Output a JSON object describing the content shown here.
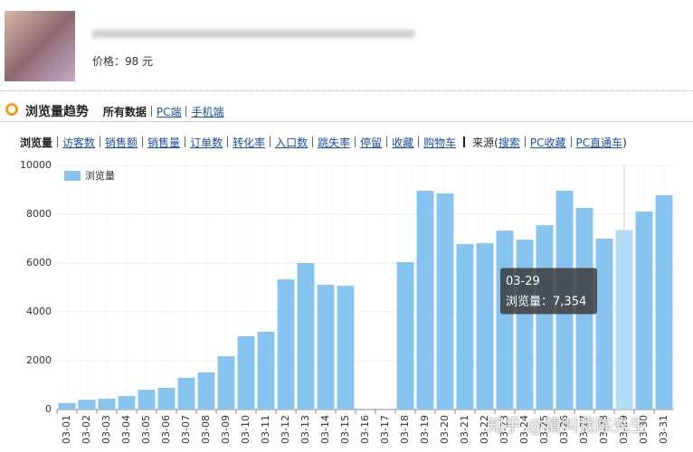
{
  "product": {
    "price": "价格：98 元"
  },
  "section": {
    "title": "浏览量趋势",
    "tabs": [
      "所有数据",
      "PC端",
      "手机端"
    ]
  },
  "metrics": {
    "active": "浏览量",
    "items": [
      "访客数",
      "销售额",
      "销售量",
      "订单数",
      "转化率",
      "入口数",
      "跳失率",
      "停留",
      "收藏",
      "购物车"
    ],
    "source_open": "来源(",
    "source_items": [
      "搜索",
      "PC收藏",
      "PC直通车"
    ],
    "source_close": ")"
  },
  "watermark": "知乎 @请叫我陈先生",
  "chart_data": {
    "type": "bar",
    "categories": [
      "03-01",
      "03-02",
      "03-03",
      "03-04",
      "03-05",
      "03-06",
      "03-07",
      "03-08",
      "03-09",
      "03-10",
      "03-11",
      "03-12",
      "03-13",
      "03-14",
      "03-15",
      "03-16",
      "03-17",
      "03-18",
      "03-19",
      "03-20",
      "03-21",
      "03-22",
      "03-23",
      "03-24",
      "03-25",
      "03-26",
      "03-27",
      "03-28",
      "03-29",
      "03-30",
      "03-31"
    ],
    "series": [
      {
        "name": "浏览量",
        "color": "#88c4f0",
        "values": [
          260,
          400,
          440,
          550,
          810,
          890,
          1300,
          1520,
          2180,
          3000,
          3190,
          5330,
          6000,
          5110,
          5070,
          0,
          0,
          6040,
          8960,
          8850,
          6780,
          6810,
          7330,
          6960,
          7550,
          8960,
          8260,
          7000,
          7354,
          8110,
          8780
        ],
        "value_labels": [
          null,
          null,
          null,
          null,
          null,
          null,
          null,
          null,
          null,
          null,
          null,
          null,
          null,
          null,
          null,
          null,
          null,
          null,
          null,
          null,
          null,
          null,
          null,
          null,
          null,
          null,
          null,
          null,
          "7,354",
          null,
          null
        ]
      }
    ],
    "highlight_color": "#b3dcf7",
    "tooltip_label": "浏览量：",
    "ylim": [
      0,
      10000
    ],
    "yticks": [
      0,
      2000,
      4000,
      6000,
      8000,
      10000
    ],
    "grid": true,
    "legend": "top-left"
  }
}
